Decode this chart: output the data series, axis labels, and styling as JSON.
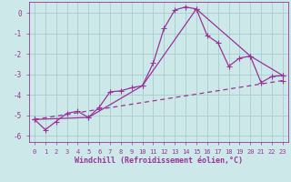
{
  "title": "",
  "xlabel": "Windchill (Refroidissement éolien,°C)",
  "ylabel": "",
  "background_color": "#cce8e8",
  "grid_color": "#aacccc",
  "line_color": "#993399",
  "xlim": [
    -0.5,
    23.5
  ],
  "ylim": [
    -6.3,
    0.55
  ],
  "yticks": [
    0,
    -1,
    -2,
    -3,
    -4,
    -5,
    -6
  ],
  "xticks": [
    0,
    1,
    2,
    3,
    4,
    5,
    6,
    7,
    8,
    9,
    10,
    11,
    12,
    13,
    14,
    15,
    16,
    17,
    18,
    19,
    20,
    21,
    22,
    23
  ],
  "series1_x": [
    0,
    1,
    2,
    3,
    4,
    5,
    6,
    7,
    8,
    9,
    10,
    11,
    12,
    13,
    14,
    15,
    16,
    17,
    18,
    19,
    20,
    21,
    22,
    23
  ],
  "series1_y": [
    -5.2,
    -5.7,
    -5.3,
    -4.9,
    -4.8,
    -5.1,
    -4.6,
    -3.85,
    -3.8,
    -3.65,
    -3.55,
    -2.45,
    -0.75,
    0.15,
    0.3,
    0.2,
    -1.1,
    -1.45,
    -2.6,
    -2.2,
    -2.1,
    -3.4,
    -3.1,
    -3.05
  ],
  "series2_x": [
    0,
    5,
    10,
    15,
    20,
    23
  ],
  "series2_y": [
    -5.2,
    -5.1,
    -3.55,
    0.2,
    -2.1,
    -3.05
  ],
  "series3_x": [
    0,
    23
  ],
  "series3_y": [
    -5.2,
    -3.3
  ],
  "marker": "+",
  "markersize": 4,
  "linewidth": 0.9
}
